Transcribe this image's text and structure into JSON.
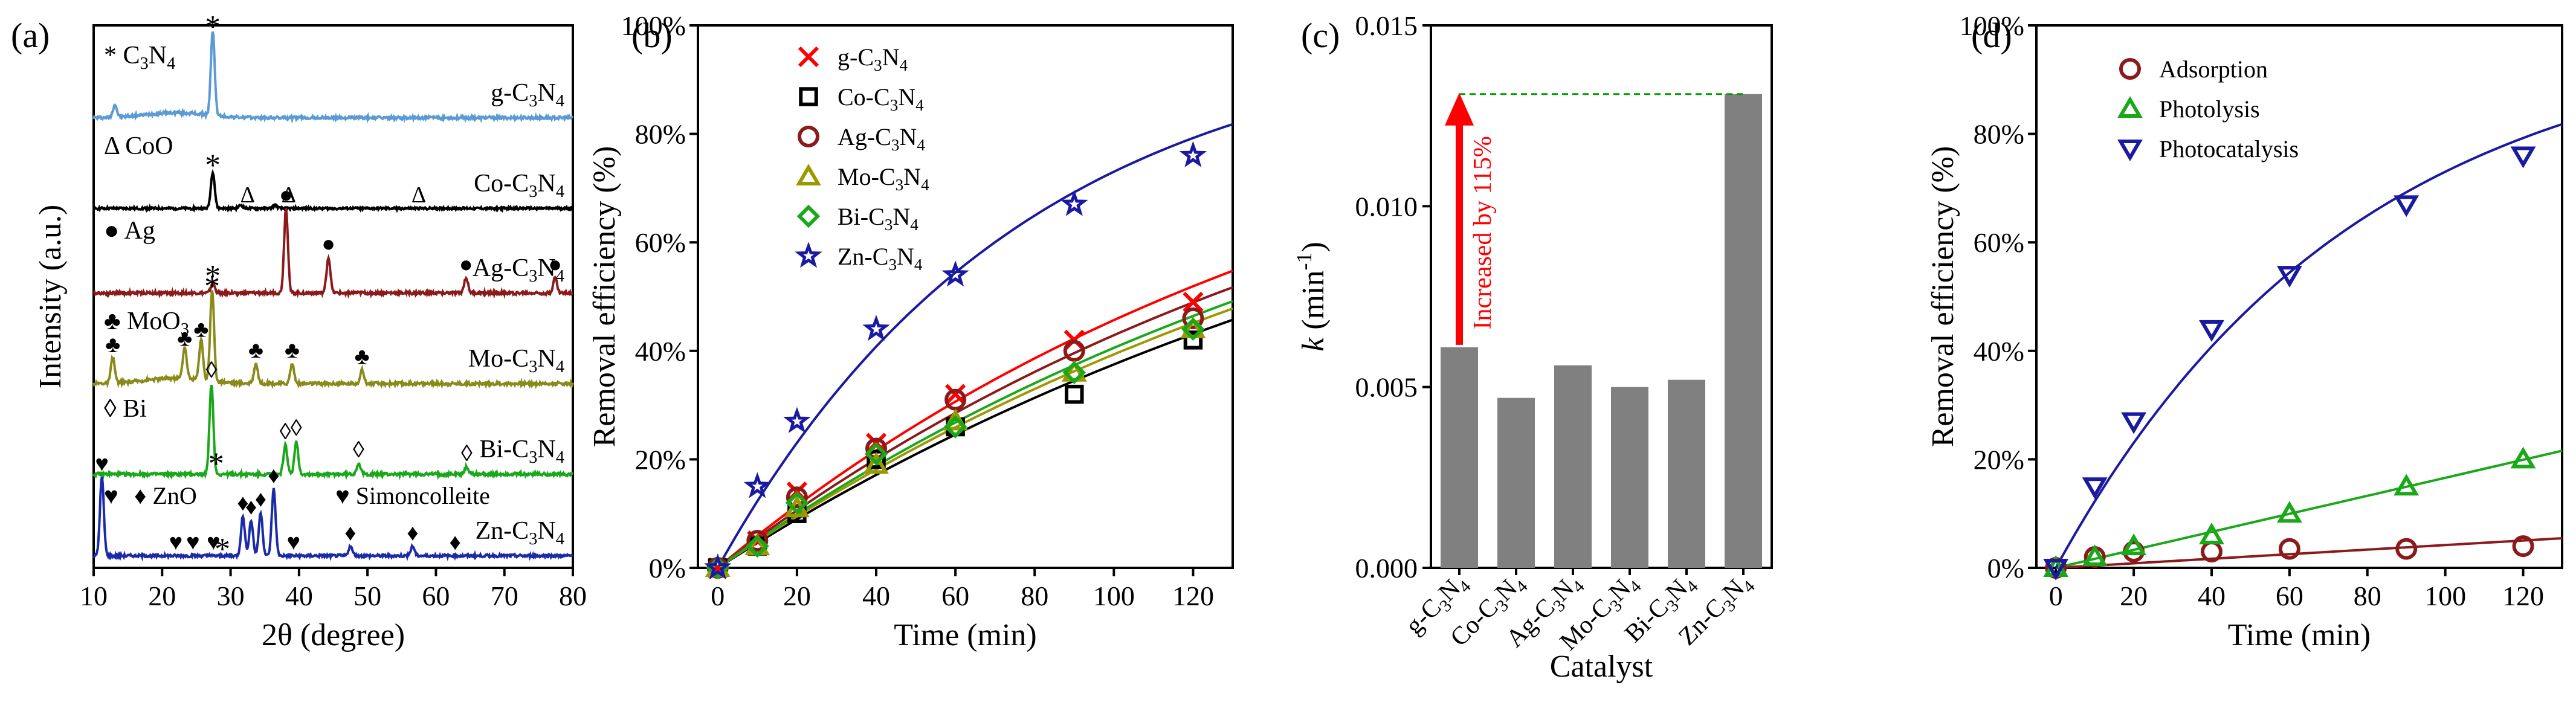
{
  "panels": [
    {
      "id": "a",
      "label": "(a)",
      "type": "xrd_stacked",
      "xlabel": "2θ (degree)",
      "ylabel": "Intensity (a.u.)",
      "xlim": [
        10,
        80
      ],
      "xticks": [
        "10",
        "20",
        "30",
        "40",
        "50",
        "60",
        "70",
        "80"
      ],
      "traces": [
        {
          "name": "g-C3N4",
          "color": "#5b9bd5",
          "label": {
            "t": "g-C",
            "s1": "3",
            "m": "N",
            "s2": "4"
          },
          "legend": {
            "sym": "*",
            "t": " C",
            "s1": "3",
            "m": "N",
            "s2": "4"
          },
          "peaks": [
            {
              "x": 13.1,
              "h": 0.15
            },
            {
              "x": 27.4,
              "h": 1.0
            }
          ],
          "marks": [
            {
              "x": 27.4,
              "sym": "*"
            }
          ]
        },
        {
          "name": "Co-C3N4",
          "color": "#000000",
          "label": {
            "t": "Co-C",
            "s1": "3",
            "m": "N",
            "s2": "4"
          },
          "legend": {
            "sym": "Δ",
            "t": " CoO"
          },
          "peaks": [
            {
              "x": 27.4,
              "h": 0.55
            },
            {
              "x": 31.5,
              "h": 0.05
            },
            {
              "x": 36.5,
              "h": 0.05
            }
          ],
          "marks": [
            {
              "x": 27.4,
              "sym": "*"
            },
            {
              "x": 32.5,
              "sym": "Δ"
            },
            {
              "x": 38.5,
              "sym": "Δ"
            },
            {
              "x": 57.5,
              "sym": "Δ"
            }
          ]
        },
        {
          "name": "Ag-C3N4",
          "color": "#8b1a1a",
          "label": {
            "t": "Ag-C",
            "s1": "3",
            "m": "N",
            "s2": "4"
          },
          "legend": {
            "sym": "●",
            "t": " Ag"
          },
          "peaks": [
            {
              "x": 27.4,
              "h": 0.12
            },
            {
              "x": 38.1,
              "h": 1.0
            },
            {
              "x": 44.3,
              "h": 0.42
            },
            {
              "x": 64.4,
              "h": 0.18
            },
            {
              "x": 77.4,
              "h": 0.18
            }
          ],
          "marks": [
            {
              "x": 27.4,
              "sym": "*"
            },
            {
              "x": 38.1,
              "sym": "●"
            },
            {
              "x": 44.3,
              "sym": "●"
            },
            {
              "x": 64.4,
              "sym": "●"
            },
            {
              "x": 77.4,
              "sym": "●"
            }
          ]
        },
        {
          "name": "Mo-C3N4",
          "color": "#8a8a1a",
          "label": {
            "t": "Mo-C",
            "s1": "3",
            "m": "N",
            "s2": "4"
          },
          "legend": {
            "sym": "♣",
            "t": " MoO",
            "s1": "3"
          },
          "peaks": [
            {
              "x": 12.8,
              "h": 0.28
            },
            {
              "x": 23.3,
              "h": 0.35
            },
            {
              "x": 25.7,
              "h": 0.45
            },
            {
              "x": 27.3,
              "h": 1.0
            },
            {
              "x": 33.7,
              "h": 0.22
            },
            {
              "x": 39.0,
              "h": 0.22
            },
            {
              "x": 49.2,
              "h": 0.15
            }
          ],
          "marks": [
            {
              "x": 12.8,
              "sym": "♣"
            },
            {
              "x": 23.3,
              "sym": "♣"
            },
            {
              "x": 25.7,
              "sym": "♣"
            },
            {
              "x": 27.3,
              "sym": "*"
            },
            {
              "x": 33.7,
              "sym": "♣"
            },
            {
              "x": 39.0,
              "sym": "♣"
            },
            {
              "x": 49.2,
              "sym": "♣"
            }
          ]
        },
        {
          "name": "Bi-C3N4",
          "color": "#1aa81a",
          "label": {
            "t": "Bi-C",
            "s1": "3",
            "m": "N",
            "s2": "4"
          },
          "legend": {
            "sym": "◊",
            "t": " Bi"
          },
          "peaks": [
            {
              "x": 27.2,
              "h": 1.0
            },
            {
              "x": 38.0,
              "h": 0.32
            },
            {
              "x": 39.6,
              "h": 0.36
            },
            {
              "x": 48.7,
              "h": 0.12
            },
            {
              "x": 64.5,
              "h": 0.08
            }
          ],
          "marks": [
            {
              "x": 27.2,
              "sym": "◊"
            },
            {
              "x": 27.9,
              "sym": "*"
            },
            {
              "x": 38.0,
              "sym": "◊"
            },
            {
              "x": 39.6,
              "sym": "◊"
            },
            {
              "x": 48.7,
              "sym": "◊"
            },
            {
              "x": 64.5,
              "sym": "◊"
            }
          ]
        },
        {
          "name": "Zn-C3N4",
          "color": "#1a2aa8",
          "label": {
            "t": "Zn-C",
            "s1": "3",
            "m": "N",
            "s2": "4"
          },
          "legend": {
            "sym": "♥",
            "t": " ",
            "extra": "♦ ZnO",
            "extra2": "♥ Simoncolleite"
          },
          "peaks": [
            {
              "x": 11.2,
              "h": 1.0
            },
            {
              "x": 31.8,
              "h": 0.5
            },
            {
              "x": 33.0,
              "h": 0.45
            },
            {
              "x": 34.4,
              "h": 0.55
            },
            {
              "x": 36.3,
              "h": 0.85
            },
            {
              "x": 47.5,
              "h": 0.12
            },
            {
              "x": 56.6,
              "h": 0.12
            }
          ],
          "marks": [
            {
              "x": 11.2,
              "sym": "♥"
            },
            {
              "x": 22.0,
              "sym": "♥"
            },
            {
              "x": 24.5,
              "sym": "♥"
            },
            {
              "x": 27.5,
              "sym": "♥"
            },
            {
              "x": 28.8,
              "sym": "*"
            },
            {
              "x": 31.8,
              "sym": "♦"
            },
            {
              "x": 33.0,
              "sym": "♦"
            },
            {
              "x": 34.4,
              "sym": "♦"
            },
            {
              "x": 36.3,
              "sym": "♦"
            },
            {
              "x": 39.2,
              "sym": "♥"
            },
            {
              "x": 47.5,
              "sym": "♦"
            },
            {
              "x": 56.6,
              "sym": "♦"
            },
            {
              "x": 62.8,
              "sym": "♦"
            }
          ]
        }
      ]
    },
    {
      "id": "b",
      "label": "(b)",
      "type": "scatter_fit",
      "xlabel": "Time (min)",
      "ylabel": "Removal efficiency (%)",
      "xlim": [
        -5,
        130
      ],
      "ylim": [
        0,
        100
      ],
      "xticks": [
        0,
        20,
        40,
        60,
        80,
        100,
        120
      ],
      "yticks": [
        0,
        20,
        40,
        60,
        80,
        100
      ],
      "ytick_labels": [
        "0%",
        "20%",
        "40%",
        "60%",
        "80%",
        "100%"
      ],
      "x": [
        0,
        10,
        20,
        40,
        60,
        90,
        120
      ],
      "series": [
        {
          "name": "g-C3N4",
          "text": {
            "t": "g-C",
            "s1": "3",
            "m": "N",
            "s2": "4"
          },
          "color": "#ff0000",
          "marker": "x",
          "values": [
            0,
            5,
            14,
            23,
            32,
            42,
            49
          ],
          "k": 0.0061
        },
        {
          "name": "Co-C3N4",
          "text": {
            "t": "Co-C",
            "s1": "3",
            "m": "N",
            "s2": "4"
          },
          "color": "#000000",
          "marker": "square",
          "values": [
            0,
            4,
            10,
            20,
            26,
            32,
            42
          ],
          "k": 0.0047
        },
        {
          "name": "Ag-C3N4",
          "text": {
            "t": "Ag-C",
            "s1": "3",
            "m": "N",
            "s2": "4"
          },
          "color": "#8b1a1a",
          "marker": "circle",
          "values": [
            0,
            5,
            13,
            22,
            31,
            40,
            46
          ],
          "k": 0.0056
        },
        {
          "name": "Mo-C3N4",
          "text": {
            "t": "Mo-C",
            "s1": "3",
            "m": "N",
            "s2": "4"
          },
          "color": "#9a9a00",
          "marker": "triangle",
          "values": [
            0,
            4,
            11,
            19,
            27,
            36,
            44
          ],
          "k": 0.005
        },
        {
          "name": "Bi-C3N4",
          "text": {
            "t": "Bi-C",
            "s1": "3",
            "m": "N",
            "s2": "4"
          },
          "color": "#1aa81a",
          "marker": "diamond",
          "values": [
            0,
            4,
            12,
            21,
            26,
            36,
            44
          ],
          "k": 0.0052
        },
        {
          "name": "Zn-C3N4",
          "text": {
            "t": "Zn-C",
            "s1": "3",
            "m": "N",
            "s2": "4"
          },
          "color": "#1a1aa0",
          "marker": "star",
          "values": [
            0,
            15,
            27,
            44,
            54,
            67,
            76
          ],
          "k": 0.0131
        }
      ]
    },
    {
      "id": "c",
      "label": "(c)",
      "type": "bar",
      "xlabel": "Catalyst",
      "ylabel": {
        "k": "k",
        "unit": " (min",
        "sup": "-1",
        "close": ")"
      },
      "ylim": [
        0,
        0.015
      ],
      "yticks": [
        0,
        0.005,
        0.01,
        0.015
      ],
      "ytick_labels": [
        "0.000",
        "0.005",
        "0.010",
        "0.015"
      ],
      "categories": [
        "g-C3N4",
        "Co-C3N4",
        "Ag-C3N4",
        "Mo-C3N4",
        "Bi-C3N4",
        "Zn-C3N4"
      ],
      "category_text": [
        {
          "t": "g-C",
          "s1": "3",
          "m": "N",
          "s2": "4"
        },
        {
          "t": "Co-C",
          "s1": "3",
          "m": "N",
          "s2": "4"
        },
        {
          "t": "Ag-C",
          "s1": "3",
          "m": "N",
          "s2": "4"
        },
        {
          "t": "Mo-C",
          "s1": "3",
          "m": "N",
          "s2": "4"
        },
        {
          "t": "Bi-C",
          "s1": "3",
          "m": "N",
          "s2": "4"
        },
        {
          "t": "Zn-C",
          "s1": "3",
          "m": "N",
          "s2": "4"
        }
      ],
      "values": [
        0.0061,
        0.0047,
        0.0056,
        0.005,
        0.0052,
        0.0131
      ],
      "bar_color": "#808080",
      "annotation": "Increased by 115%",
      "arrow_color": "#ff0000",
      "guide_color": "#00a000"
    },
    {
      "id": "d",
      "label": "(d)",
      "type": "scatter_fit",
      "xlabel": "Time (min)",
      "ylabel": "Removal efficiency (%)",
      "xlim": [
        -5,
        130
      ],
      "ylim": [
        0,
        100
      ],
      "xticks": [
        0,
        20,
        40,
        60,
        80,
        100,
        120
      ],
      "yticks": [
        0,
        20,
        40,
        60,
        80,
        100
      ],
      "ytick_labels": [
        "0%",
        "20%",
        "40%",
        "60%",
        "80%",
        "100%"
      ],
      "x": [
        0,
        10,
        20,
        40,
        60,
        90,
        120
      ],
      "series": [
        {
          "name": "Adsorption",
          "color": "#8b1a1a",
          "marker": "circle",
          "values": [
            0,
            2,
            3,
            3,
            3.5,
            3.5,
            4
          ],
          "fit": "linear",
          "slope": 0.042
        },
        {
          "name": "Photolysis",
          "color": "#1aa81a",
          "marker": "triangle",
          "values": [
            0,
            2,
            4,
            6,
            10,
            15,
            20
          ],
          "fit": "linear",
          "slope": 0.166
        },
        {
          "name": "Photocatalysis",
          "color": "#1a1aa0",
          "marker": "triangle-down",
          "values": [
            0,
            15,
            27,
            44,
            54,
            67,
            76
          ],
          "k": 0.0131
        }
      ]
    }
  ]
}
